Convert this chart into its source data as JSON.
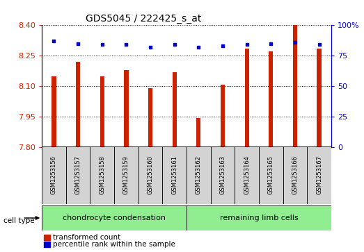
{
  "title": "GDS5045 / 222425_s_at",
  "samples": [
    "GSM1253156",
    "GSM1253157",
    "GSM1253158",
    "GSM1253159",
    "GSM1253160",
    "GSM1253161",
    "GSM1253162",
    "GSM1253163",
    "GSM1253164",
    "GSM1253165",
    "GSM1253166",
    "GSM1253167"
  ],
  "transformed_counts": [
    8.15,
    8.22,
    8.15,
    8.18,
    8.09,
    8.17,
    7.945,
    8.107,
    8.285,
    8.27,
    8.4,
    8.285
  ],
  "percentile_ranks": [
    87,
    85,
    84,
    84,
    82,
    84,
    82,
    83,
    84,
    85,
    86,
    84
  ],
  "ymin": 7.8,
  "ymax": 8.4,
  "y2min": 0,
  "y2max": 100,
  "yticks": [
    7.8,
    7.95,
    8.1,
    8.25,
    8.4
  ],
  "y2ticks": [
    0,
    25,
    50,
    75,
    100
  ],
  "bar_color": "#cc2200",
  "dot_color": "#0000cc",
  "group1_label": "chondrocyte condensation",
  "group2_label": "remaining limb cells",
  "group1_indices": [
    0,
    1,
    2,
    3,
    4,
    5
  ],
  "group2_indices": [
    6,
    7,
    8,
    9,
    10,
    11
  ],
  "group1_color": "#90ee90",
  "group2_color": "#90ee90",
  "label_box_color": "#d3d3d3",
  "cell_type_label": "cell type",
  "legend1": "transformed count",
  "legend2": "percentile rank within the sample",
  "bar_width": 0.18,
  "axis_label_color_left": "#cc2200",
  "axis_label_color_right": "#0000cc",
  "bg_color": "#ffffff"
}
